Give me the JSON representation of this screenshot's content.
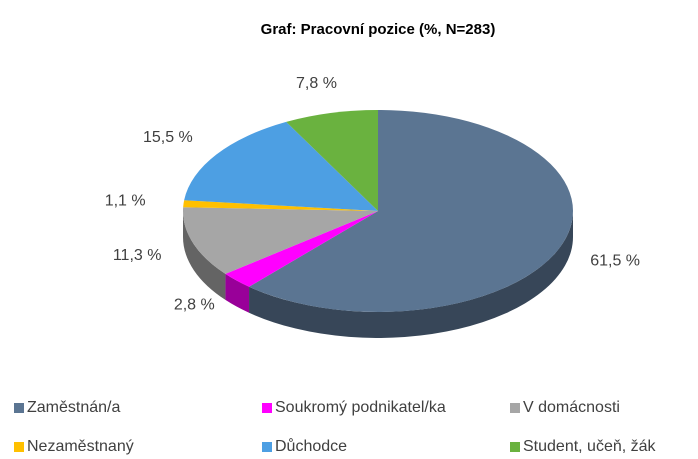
{
  "chart_data": {
    "type": "pie",
    "title": "Graf: Pracovní pozice (%, N=283)",
    "categories": [
      "Zaměstnán/a",
      "Soukromý podnikatel/ka",
      "V domácnosti",
      "Nezaměstnaný",
      "Důchodce",
      "Student, učeň, žák"
    ],
    "values": [
      61.5,
      2.8,
      11.3,
      1.1,
      15.5,
      7.8
    ],
    "value_labels": [
      "61,5 %",
      "2,8 %",
      "11,3 %",
      "1,1 %",
      "15,5 %",
      "7,8 %"
    ],
    "colors": [
      "#5b7592",
      "#ff00ff",
      "#a6a6a6",
      "#ffc000",
      "#4d9fe3",
      "#6ab23f"
    ],
    "legend": "bottom"
  }
}
